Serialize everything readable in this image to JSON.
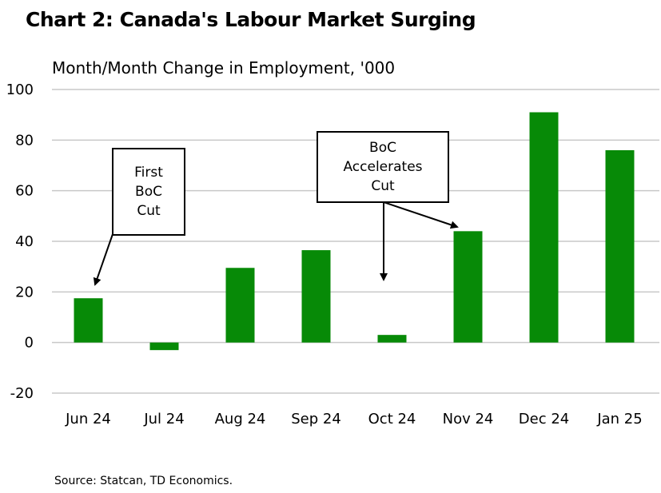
{
  "header": {
    "title": "Chart 2: Canada's Labour Market Surging",
    "subtitle": "Month/Month Change in Employment, '000"
  },
  "footer": {
    "source": "Source: Statcan, TD Economics."
  },
  "colors": {
    "bar": "#078a07",
    "grid": "#c8c8c8"
  },
  "chart_data": {
    "type": "bar",
    "title": "Chart 2: Canada's Labour Market Surging",
    "subtitle": "Month/Month Change in Employment, '000",
    "xlabel": "",
    "ylabel": "",
    "categories": [
      "Jun 24",
      "Jul 24",
      "Aug 24",
      "Sep 24",
      "Oct 24",
      "Nov 24",
      "Dec 24",
      "Jan 25"
    ],
    "values": [
      17.5,
      -3,
      29.5,
      36.5,
      3,
      44,
      91,
      76
    ],
    "ylim": [
      -20,
      100
    ],
    "yticks": [
      -20,
      0,
      20,
      40,
      60,
      80,
      100
    ],
    "grid": true,
    "legend": "none",
    "annotations": [
      {
        "text": "First\nBoC\nCut",
        "target": "Jun 24"
      },
      {
        "text": "BoC\nAccelerates\nCut",
        "target": [
          "Oct 24",
          "Nov 24"
        ]
      }
    ]
  }
}
